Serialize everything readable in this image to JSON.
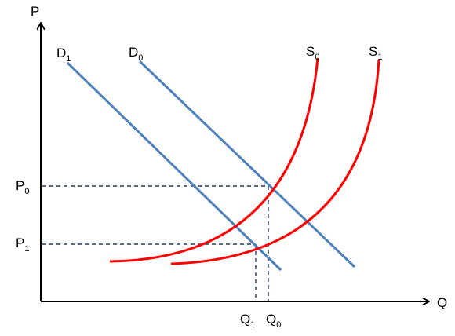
{
  "axes": {
    "y_label": "P",
    "x_label": "Q"
  },
  "demand_curves": [
    {
      "letter": "D",
      "subscript": "1"
    },
    {
      "letter": "D",
      "subscript": "0"
    }
  ],
  "supply_curves": [
    {
      "letter": "S",
      "subscript": "0"
    },
    {
      "letter": "S",
      "subscript": "1"
    }
  ],
  "price_levels": [
    {
      "letter": "P",
      "subscript": "0"
    },
    {
      "letter": "P",
      "subscript": "1"
    }
  ],
  "quantity_levels": [
    {
      "letter": "Q",
      "subscript": "1"
    },
    {
      "letter": "Q",
      "subscript": "0"
    }
  ],
  "colors": {
    "demand": "#4f81bd",
    "supply": "#ff0000",
    "guides": "#1f3864",
    "axes": "#000000"
  }
}
